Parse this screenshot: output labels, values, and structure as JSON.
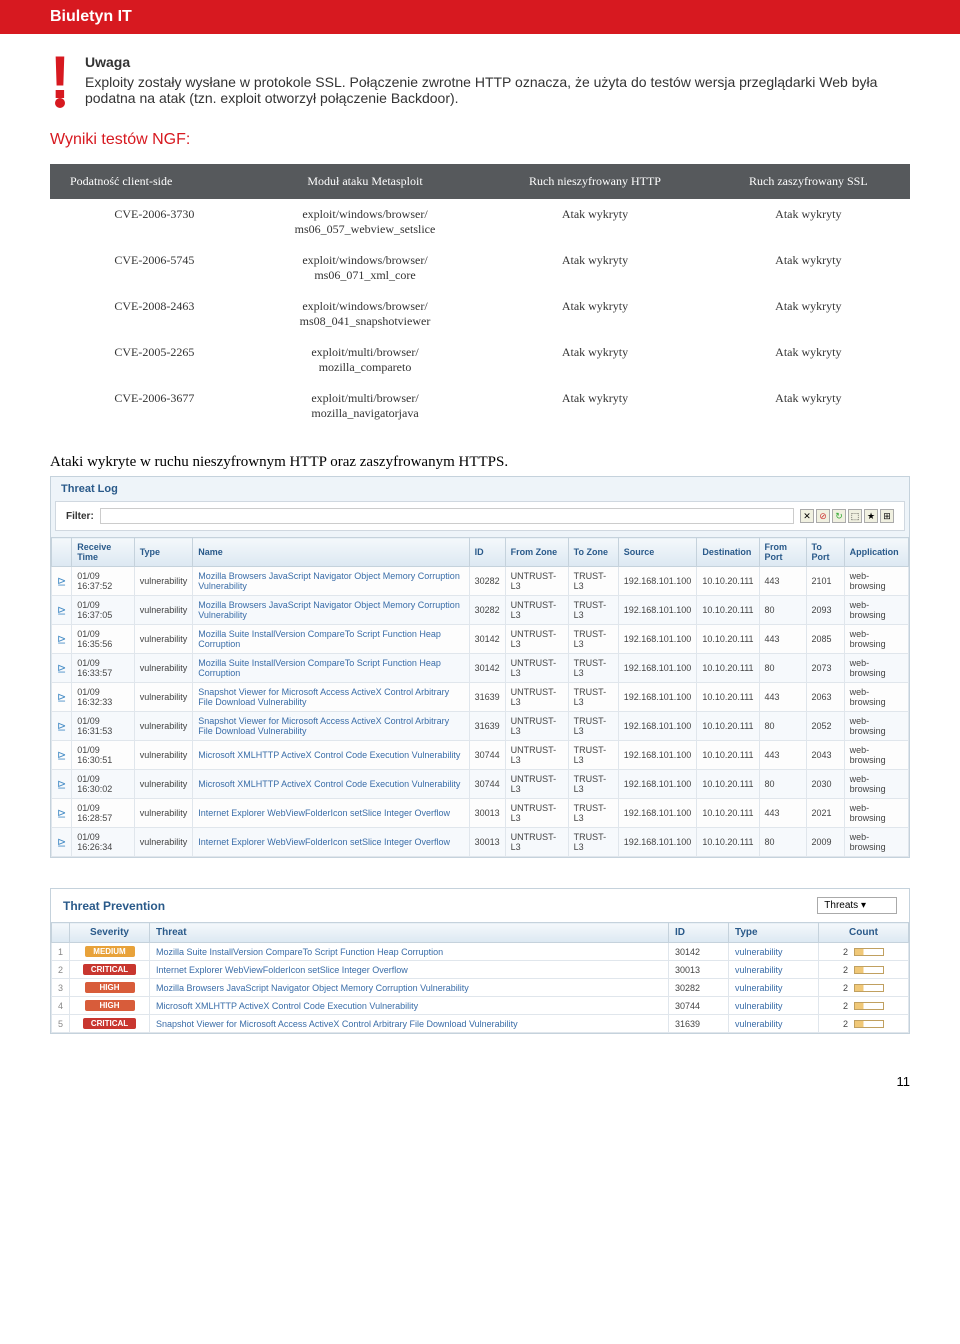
{
  "banner": "Biuletyn IT",
  "warning": {
    "title": "Uwaga",
    "body": "Exploity zostały wysłane w protokole SSL. Połączenie zwrotne HTTP oznacza, że użyta do testów wersja przeglądarki Web była podatna na atak (tzn. exploit otworzył połączenie Backdoor)."
  },
  "ngf": {
    "title": "Wyniki testów NGF:",
    "headers": [
      "Podatność client-side",
      "Moduł ataku Metasploit",
      "Ruch nieszyfrowany HTTP",
      "Ruch zaszyfrowany SSL"
    ],
    "rows": [
      {
        "cve": "CVE-2006-3730",
        "module": "exploit/windows/browser/\nms06_057_webview_setslice",
        "http": "Atak wykryty",
        "ssl": "Atak wykryty"
      },
      {
        "cve": "CVE-2006-5745",
        "module": "exploit/windows/browser/\nms06_071_xml_core",
        "http": "Atak wykryty",
        "ssl": "Atak wykryty"
      },
      {
        "cve": "CVE-2008-2463",
        "module": "exploit/windows/browser/\nms08_041_snapshotviewer",
        "http": "Atak wykryty",
        "ssl": "Atak wykryty"
      },
      {
        "cve": "CVE-2005-2265",
        "module": "exploit/multi/browser/\nmozilla_compareto",
        "http": "Atak wykryty",
        "ssl": "Atak wykryty"
      },
      {
        "cve": "CVE-2006-3677",
        "module": "exploit/multi/browser/\nmozilla_navigatorjava",
        "http": "Atak wykryty",
        "ssl": "Atak wykryty"
      }
    ]
  },
  "caption": "Ataki wykryte w ruchu nieszyfrownym HTTP oraz zaszyfrowanym HTTPS.",
  "threatlog": {
    "title": "Threat Log",
    "filter_label": "Filter:",
    "columns": [
      "",
      "Receive Time",
      "Type",
      "Name",
      "ID",
      "From Zone",
      "To Zone",
      "Source",
      "Destination",
      "From Port",
      "To Port",
      "Application"
    ],
    "rows": [
      {
        "time": "01/09 16:37:52",
        "type": "vulnerability",
        "name": "Mozilla Browsers JavaScript Navigator Object Memory Corruption Vulnerability",
        "id": "30282",
        "fz": "UNTRUST-L3",
        "tz": "TRUST-L3",
        "src": "192.168.101.100",
        "dst": "10.10.20.111",
        "fp": "443",
        "tp": "2101",
        "app": "web-browsing"
      },
      {
        "time": "01/09 16:37:05",
        "type": "vulnerability",
        "name": "Mozilla Browsers JavaScript Navigator Object Memory Corruption Vulnerability",
        "id": "30282",
        "fz": "UNTRUST-L3",
        "tz": "TRUST-L3",
        "src": "192.168.101.100",
        "dst": "10.10.20.111",
        "fp": "80",
        "tp": "2093",
        "app": "web-browsing"
      },
      {
        "time": "01/09 16:35:56",
        "type": "vulnerability",
        "name": "Mozilla Suite InstallVersion CompareTo Script Function Heap Corruption",
        "id": "30142",
        "fz": "UNTRUST-L3",
        "tz": "TRUST-L3",
        "src": "192.168.101.100",
        "dst": "10.10.20.111",
        "fp": "443",
        "tp": "2085",
        "app": "web-browsing"
      },
      {
        "time": "01/09 16:33:57",
        "type": "vulnerability",
        "name": "Mozilla Suite InstallVersion CompareTo Script Function Heap Corruption",
        "id": "30142",
        "fz": "UNTRUST-L3",
        "tz": "TRUST-L3",
        "src": "192.168.101.100",
        "dst": "10.10.20.111",
        "fp": "80",
        "tp": "2073",
        "app": "web-browsing"
      },
      {
        "time": "01/09 16:32:33",
        "type": "vulnerability",
        "name": "Snapshot Viewer for Microsoft Access ActiveX Control Arbitrary File Download Vulnerability",
        "id": "31639",
        "fz": "UNTRUST-L3",
        "tz": "TRUST-L3",
        "src": "192.168.101.100",
        "dst": "10.10.20.111",
        "fp": "443",
        "tp": "2063",
        "app": "web-browsing"
      },
      {
        "time": "01/09 16:31:53",
        "type": "vulnerability",
        "name": "Snapshot Viewer for Microsoft Access ActiveX Control Arbitrary File Download Vulnerability",
        "id": "31639",
        "fz": "UNTRUST-L3",
        "tz": "TRUST-L3",
        "src": "192.168.101.100",
        "dst": "10.10.20.111",
        "fp": "80",
        "tp": "2052",
        "app": "web-browsing"
      },
      {
        "time": "01/09 16:30:51",
        "type": "vulnerability",
        "name": "Microsoft XMLHTTP ActiveX Control Code Execution Vulnerability",
        "id": "30744",
        "fz": "UNTRUST-L3",
        "tz": "TRUST-L3",
        "src": "192.168.101.100",
        "dst": "10.10.20.111",
        "fp": "443",
        "tp": "2043",
        "app": "web-browsing"
      },
      {
        "time": "01/09 16:30:02",
        "type": "vulnerability",
        "name": "Microsoft XMLHTTP ActiveX Control Code Execution Vulnerability",
        "id": "30744",
        "fz": "UNTRUST-L3",
        "tz": "TRUST-L3",
        "src": "192.168.101.100",
        "dst": "10.10.20.111",
        "fp": "80",
        "tp": "2030",
        "app": "web-browsing"
      },
      {
        "time": "01/09 16:28:57",
        "type": "vulnerability",
        "name": "Internet Explorer WebViewFolderIcon setSlice Integer Overflow",
        "id": "30013",
        "fz": "UNTRUST-L3",
        "tz": "TRUST-L3",
        "src": "192.168.101.100",
        "dst": "10.10.20.111",
        "fp": "443",
        "tp": "2021",
        "app": "web-browsing"
      },
      {
        "time": "01/09 16:26:34",
        "type": "vulnerability",
        "name": "Internet Explorer WebViewFolderIcon setSlice Integer Overflow",
        "id": "30013",
        "fz": "UNTRUST-L3",
        "tz": "TRUST-L3",
        "src": "192.168.101.100",
        "dst": "10.10.20.111",
        "fp": "80",
        "tp": "2009",
        "app": "web-browsing"
      }
    ]
  },
  "tp": {
    "title": "Threat Prevention",
    "select": "Threats",
    "columns": [
      "",
      "Severity",
      "Threat",
      "ID",
      "Type",
      "Count"
    ],
    "rows": [
      {
        "n": "1",
        "sev": "MEDIUM",
        "sev_color": "#e8a23a",
        "threat": "Mozilla Suite InstallVersion CompareTo Script Function Heap Corruption",
        "id": "30142",
        "type": "vulnerability",
        "count": "2"
      },
      {
        "n": "2",
        "sev": "CRITICAL",
        "sev_color": "#c8362f",
        "threat": "Internet Explorer WebViewFolderIcon setSlice Integer Overflow",
        "id": "30013",
        "type": "vulnerability",
        "count": "2"
      },
      {
        "n": "3",
        "sev": "HIGH",
        "sev_color": "#d85c3a",
        "threat": "Mozilla Browsers JavaScript Navigator Object Memory Corruption Vulnerability",
        "id": "30282",
        "type": "vulnerability",
        "count": "2"
      },
      {
        "n": "4",
        "sev": "HIGH",
        "sev_color": "#d85c3a",
        "threat": "Microsoft XMLHTTP ActiveX Control Code Execution Vulnerability",
        "id": "30744",
        "type": "vulnerability",
        "count": "2"
      },
      {
        "n": "5",
        "sev": "CRITICAL",
        "sev_color": "#c8362f",
        "threat": "Snapshot Viewer for Microsoft Access ActiveX Control Arbitrary File Download Vulnerability",
        "id": "31639",
        "type": "vulnerability",
        "count": "2"
      }
    ]
  },
  "page_number": "11"
}
